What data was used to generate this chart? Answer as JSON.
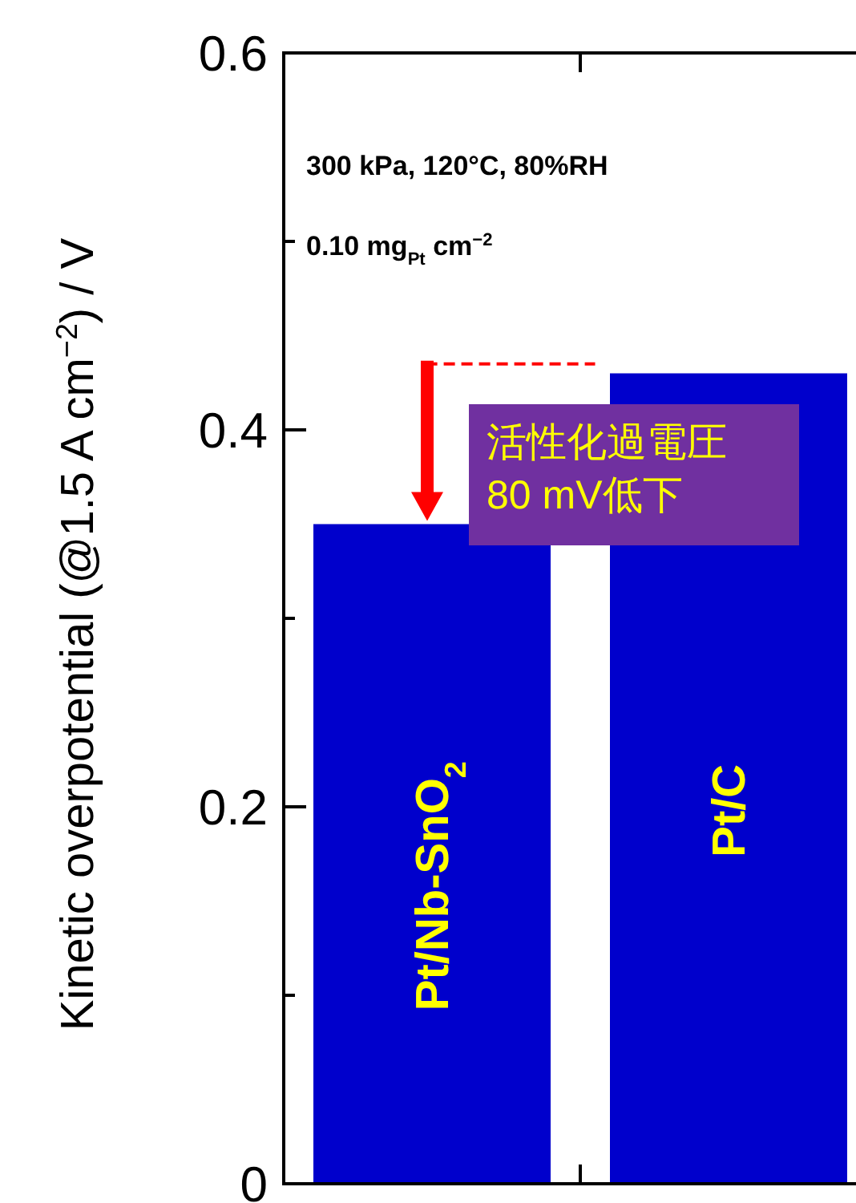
{
  "chart_data": {
    "type": "bar",
    "categories": [
      "Pt/Nb-SnO$_{2}$",
      "Pt/C"
    ],
    "values": [
      0.35,
      0.43
    ],
    "color": "#0000cc",
    "ylabel": "Kinetic overpotential (@1.5 A cm$^{−2}$) / V",
    "ylim": [
      0,
      0.6
    ],
    "yticks": [
      0,
      {
        "value": 0.1,
        "label": null
      },
      0.2,
      {
        "value": 0.3,
        "label": null
      },
      0.4,
      {
        "value": 0.5,
        "label": null
      },
      0.6
    ],
    "ref_lines": [
      {
        "axis": "y",
        "value": 0.435,
        "color": "#ff0000",
        "line_style": "dashed"
      }
    ],
    "annotations": [
      "300 kPa, 120°C, 80%RH",
      "0.10 mg$_{Pt}$ cm$^{−2}$",
      {
        "text": "活性化過電圧\n80 mV低下",
        "x": "Pt/Nb-SnO$_{2}$",
        "y": 0.35
      }
    ],
    "xlabel": null
  }
}
